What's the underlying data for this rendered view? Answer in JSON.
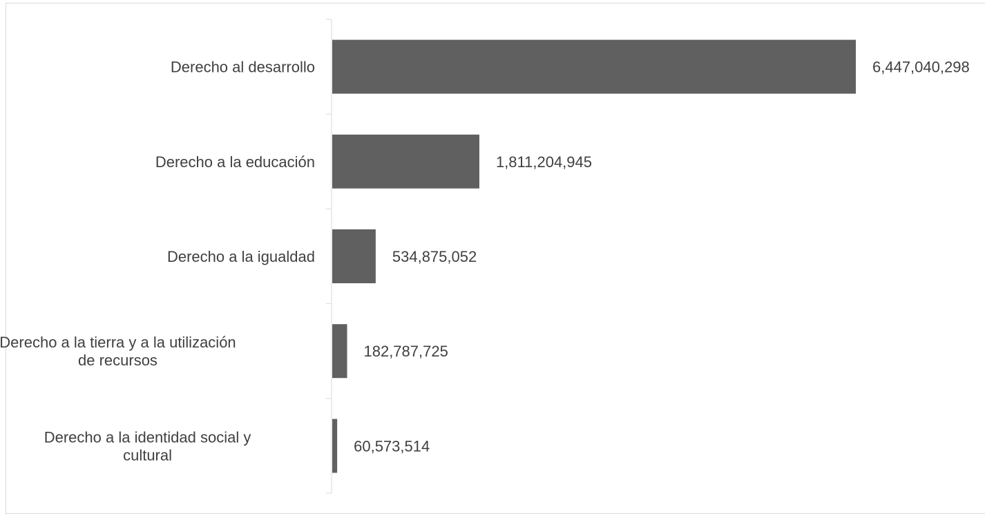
{
  "chart_data": {
    "type": "bar",
    "orientation": "horizontal",
    "categories": [
      "Derecho al desarrollo",
      "Derecho a la educación",
      "Derecho a la igualdad",
      "Derecho a la tierra y a la utilización de recursos",
      "Derecho a la identidad social y cultural"
    ],
    "category_label_lines": [
      [
        "Derecho al desarrollo"
      ],
      [
        "Derecho a la educación"
      ],
      [
        "Derecho a la igualdad"
      ],
      [
        "Derecho a la tierra y a la utilización",
        "de recursos"
      ],
      [
        "Derecho a la identidad social y",
        "cultural"
      ]
    ],
    "values": [
      6447040298,
      1811204945,
      534875052,
      182787725,
      60573514
    ],
    "data_labels": [
      "6,447,040,298",
      "1,811,204,945",
      "534,875,052",
      "182,787,725",
      "60,573,514"
    ],
    "title": "",
    "xlabel": "",
    "ylabel": "",
    "xlim": [
      0,
      6447040298
    ],
    "grid": false,
    "legend": "none",
    "colors": {
      "bar": "#606060",
      "axis": "#d9d9d9",
      "text": "#404040",
      "border": "#d9d9d9"
    }
  }
}
